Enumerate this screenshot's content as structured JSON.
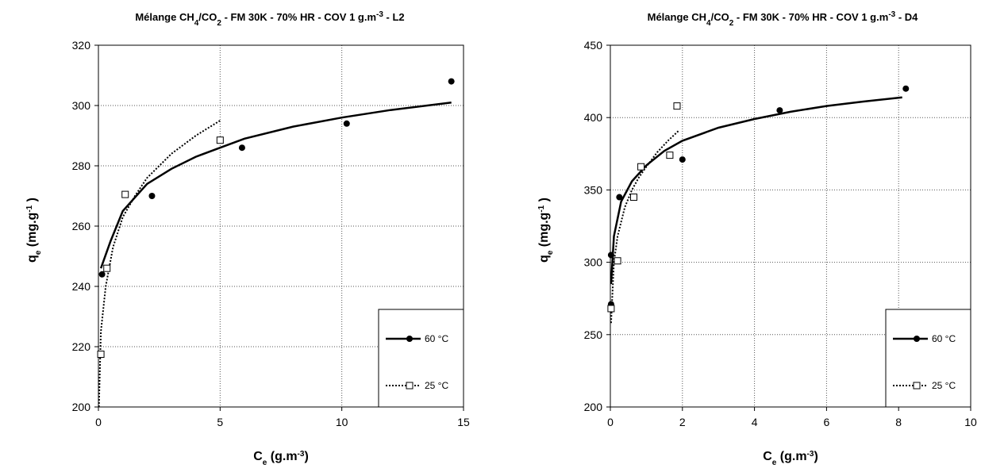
{
  "chart_data": [
    {
      "type": "scatter",
      "title": {
        "pre": "Mélange CH",
        "s1": "4",
        "mid": "/CO",
        "s2": "2",
        "post": " - FM 30K - 70% HR - COV 1 g.m",
        "sup": "-3",
        "end": " - L2"
      },
      "xlabel": {
        "main": "C",
        "sub": "e",
        "rest": " (g.m",
        "sup": "-3",
        "close": ")"
      },
      "ylabel": {
        "main": "q",
        "sub": "e",
        "rest": " (mg.g",
        "sup": "-1",
        "close": " )"
      },
      "xlim": [
        0,
        15
      ],
      "ylim": [
        200,
        320
      ],
      "xticks": [
        "0",
        "5",
        "10",
        "15"
      ],
      "yticks": [
        "200",
        "220",
        "240",
        "260",
        "280",
        "300",
        "320"
      ],
      "grid": true,
      "legend_position": "bottom-right",
      "series": [
        {
          "name": "60 °C",
          "marker": "filled-circle",
          "line": "solid",
          "points": [
            [
              0.15,
              244
            ],
            [
              2.2,
              270
            ],
            [
              5.9,
              286
            ],
            [
              10.2,
              294
            ],
            [
              14.5,
              308
            ]
          ],
          "fit": [
            [
              0.1,
              246
            ],
            [
              0.5,
              255
            ],
            [
              1,
              265
            ],
            [
              2,
              274
            ],
            [
              3,
              279
            ],
            [
              4,
              283
            ],
            [
              5,
              286
            ],
            [
              6,
              289
            ],
            [
              8,
              293
            ],
            [
              10,
              296
            ],
            [
              12,
              298.5
            ],
            [
              14.5,
              301
            ]
          ]
        },
        {
          "name": "25 °C",
          "marker": "open-square",
          "line": "dotted",
          "points": [
            [
              0.1,
              217.5
            ],
            [
              0.35,
              246
            ],
            [
              1.1,
              270.5
            ],
            [
              5.0,
              288.5
            ]
          ],
          "fit": [
            [
              0.02,
              200
            ],
            [
              0.1,
              225
            ],
            [
              0.3,
              240
            ],
            [
              0.6,
              253
            ],
            [
              1,
              263
            ],
            [
              1.5,
              270
            ],
            [
              2,
              276
            ],
            [
              3,
              284
            ],
            [
              4,
              290
            ],
            [
              5,
              295
            ]
          ]
        }
      ]
    },
    {
      "type": "scatter",
      "title": {
        "pre": "Mélange CH",
        "s1": "4",
        "mid": "/CO",
        "s2": "2",
        "post": " - FM 30K - 70% HR - COV 1 g.m",
        "sup": "-3",
        "end": " - D4"
      },
      "xlabel": {
        "main": "C",
        "sub": "e",
        "rest": " (g.m",
        "sup": "-3",
        "close": ")"
      },
      "ylabel": {
        "main": "q",
        "sub": "e",
        "rest": " (mg.g",
        "sup": "-1",
        "close": " )"
      },
      "xlim": [
        0,
        10
      ],
      "ylim": [
        200,
        450
      ],
      "xticks": [
        "0",
        "2",
        "4",
        "6",
        "8",
        "10"
      ],
      "yticks": [
        "200",
        "250",
        "300",
        "350",
        "400",
        "450"
      ],
      "grid": true,
      "legend_position": "bottom-right",
      "series": [
        {
          "name": "60 °C",
          "marker": "filled-circle",
          "line": "solid",
          "points": [
            [
              0.02,
              271
            ],
            [
              0.02,
              305
            ],
            [
              0.25,
              345
            ],
            [
              2.0,
              371
            ],
            [
              4.7,
              405
            ],
            [
              8.2,
              420
            ]
          ],
          "fit": [
            [
              0.02,
              285
            ],
            [
              0.1,
              318
            ],
            [
              0.3,
              342
            ],
            [
              0.6,
              356
            ],
            [
              1,
              367
            ],
            [
              1.5,
              377
            ],
            [
              2,
              384
            ],
            [
              3,
              393
            ],
            [
              4,
              399
            ],
            [
              5,
              404
            ],
            [
              6,
              408
            ],
            [
              7,
              411
            ],
            [
              8.1,
              414
            ]
          ]
        },
        {
          "name": "25 °C",
          "marker": "open-square",
          "line": "dotted",
          "points": [
            [
              0.02,
              268
            ],
            [
              0.2,
              301
            ],
            [
              0.65,
              345
            ],
            [
              0.85,
              366
            ],
            [
              1.65,
              374
            ],
            [
              1.85,
              408
            ]
          ],
          "fit": [
            [
              0.02,
              258
            ],
            [
              0.1,
              300
            ],
            [
              0.2,
              318
            ],
            [
              0.4,
              338
            ],
            [
              0.6,
              350
            ],
            [
              0.8,
              359
            ],
            [
              1,
              366
            ],
            [
              1.3,
              376
            ],
            [
              1.6,
              384
            ],
            [
              1.9,
              391
            ]
          ]
        }
      ]
    }
  ]
}
